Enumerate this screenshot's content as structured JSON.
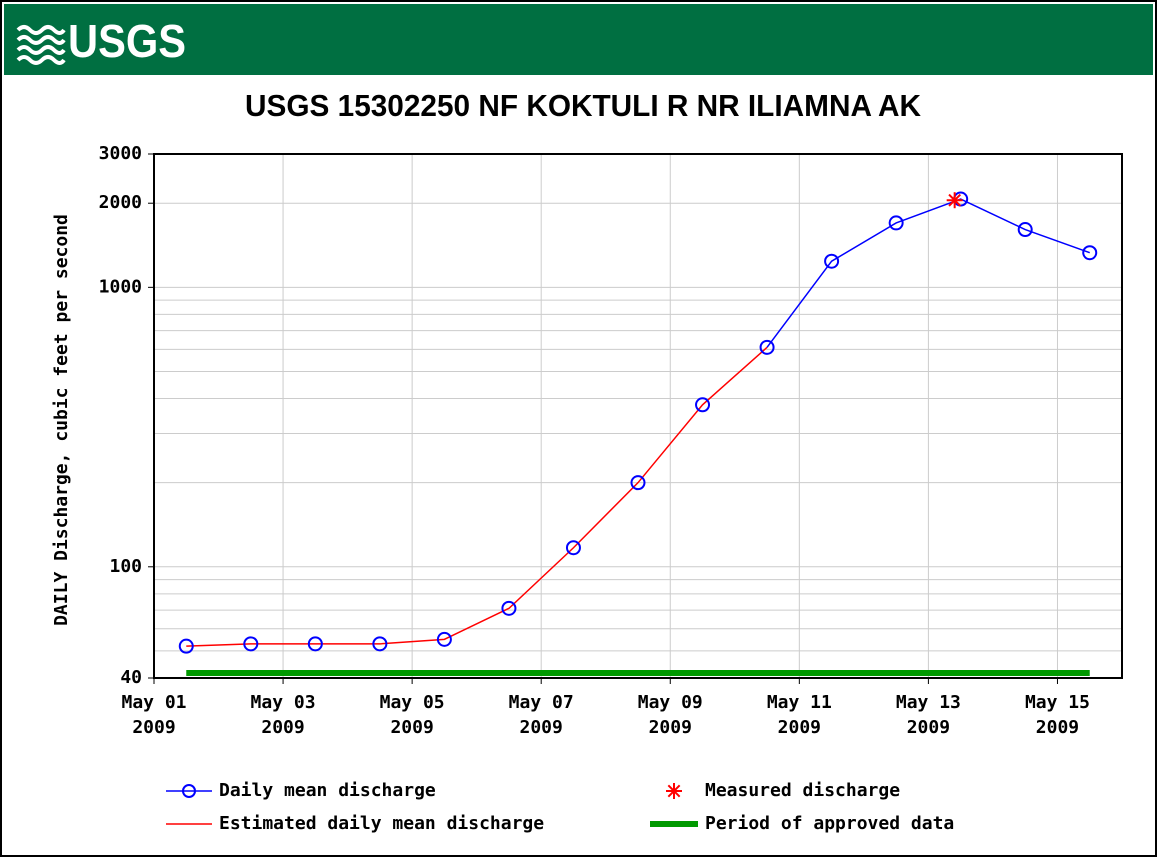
{
  "header": {
    "logo": "USGS"
  },
  "chart_data": {
    "type": "line",
    "title": "USGS 15302250 NF KOKTULI R NR ILIAMNA AK",
    "y_label": "DAILY Discharge, cubic feet per second",
    "log_y": true,
    "grid": true,
    "ylim": [
      40,
      3000
    ],
    "yticks": [
      40,
      100,
      1000,
      2000,
      3000
    ],
    "xlim": [
      "2009-05-01",
      "2009-05-16"
    ],
    "xticks": [
      {
        "value": "2009-05-01",
        "label": "May 01\n2009"
      },
      {
        "value": "2009-05-03",
        "label": "May 03\n2009"
      },
      {
        "value": "2009-05-05",
        "label": "May 05\n2009"
      },
      {
        "value": "2009-05-07",
        "label": "May 07\n2009"
      },
      {
        "value": "2009-05-09",
        "label": "May 09\n2009"
      },
      {
        "value": "2009-05-11",
        "label": "May 11\n2009"
      },
      {
        "value": "2009-05-13",
        "label": "May 13\n2009"
      },
      {
        "value": "2009-05-15",
        "label": "May 15\n2009"
      }
    ],
    "x": [
      "2009-05-01",
      "2009-05-02",
      "2009-05-03",
      "2009-05-04",
      "2009-05-05",
      "2009-05-06",
      "2009-05-07",
      "2009-05-08",
      "2009-05-09",
      "2009-05-10",
      "2009-05-11",
      "2009-05-12",
      "2009-05-13",
      "2009-05-14",
      "2009-05-15"
    ],
    "series": [
      {
        "name": "Daily mean discharge",
        "color": "#0000ff",
        "marker": "circle",
        "values": [
          52,
          53,
          53,
          53,
          55,
          71,
          117,
          200,
          380,
          610,
          1240,
          1700,
          2070,
          1610,
          1330
        ]
      },
      {
        "name": "Estimated daily mean discharge",
        "color": "#ff0000",
        "values": [
          52,
          53,
          53,
          53,
          55,
          71,
          117,
          200,
          380,
          610,
          null,
          null,
          null,
          null,
          null
        ]
      }
    ],
    "measured": {
      "name": "Measured discharge",
      "color": "#ff0000",
      "marker": "star",
      "x": [
        "2009-05-13"
      ],
      "values": [
        2050
      ]
    },
    "approved_period": {
      "name": "Period of approved data",
      "color": "#009900",
      "start": "2009-05-01",
      "end": "2009-05-15"
    }
  }
}
